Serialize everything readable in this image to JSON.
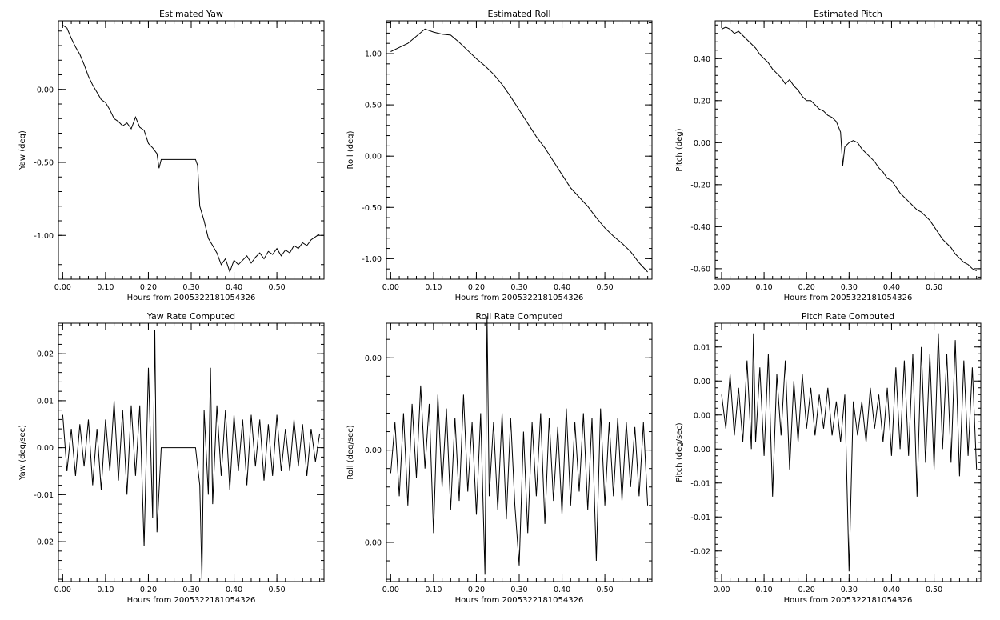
{
  "figure": {
    "background": "#ffffff",
    "line_color": "#000000"
  },
  "chart_data": [
    {
      "type": "line",
      "title": "Estimated Yaw",
      "xlabel": "Hours from 2005322181054326",
      "ylabel": "Yaw (deg)",
      "xlim": [
        -0.01,
        0.61
      ],
      "ylim": [
        -1.3,
        0.47
      ],
      "xticks": [
        0.0,
        0.1,
        0.2,
        0.3,
        0.4,
        0.5
      ],
      "xtick_labels": [
        "0.00",
        "0.10",
        "0.20",
        "0.30",
        "0.40",
        "0.50"
      ],
      "yticks": [
        0.0,
        -0.5,
        -1.0
      ],
      "ytick_labels": [
        "0.00",
        "-0.50",
        "-1.00"
      ],
      "x": [
        0.0,
        0.01,
        0.02,
        0.03,
        0.04,
        0.05,
        0.06,
        0.07,
        0.08,
        0.09,
        0.1,
        0.11,
        0.12,
        0.13,
        0.14,
        0.15,
        0.16,
        0.17,
        0.18,
        0.19,
        0.2,
        0.21,
        0.22,
        0.225,
        0.23,
        0.31,
        0.315,
        0.32,
        0.33,
        0.34,
        0.35,
        0.36,
        0.37,
        0.38,
        0.39,
        0.4,
        0.41,
        0.42,
        0.43,
        0.44,
        0.45,
        0.46,
        0.47,
        0.48,
        0.49,
        0.5,
        0.51,
        0.52,
        0.53,
        0.54,
        0.55,
        0.56,
        0.57,
        0.58,
        0.59,
        0.6
      ],
      "y": [
        0.44,
        0.42,
        0.35,
        0.29,
        0.24,
        0.17,
        0.09,
        0.03,
        -0.02,
        -0.07,
        -0.09,
        -0.14,
        -0.2,
        -0.22,
        -0.25,
        -0.23,
        -0.27,
        -0.19,
        -0.26,
        -0.28,
        -0.37,
        -0.4,
        -0.44,
        -0.54,
        -0.48,
        -0.48,
        -0.52,
        -0.8,
        -0.9,
        -1.02,
        -1.07,
        -1.12,
        -1.2,
        -1.16,
        -1.25,
        -1.17,
        -1.2,
        -1.17,
        -1.14,
        -1.19,
        -1.15,
        -1.12,
        -1.16,
        -1.11,
        -1.13,
        -1.09,
        -1.14,
        -1.1,
        -1.12,
        -1.07,
        -1.09,
        -1.05,
        -1.07,
        -1.03,
        -1.01,
        -0.99
      ]
    },
    {
      "type": "line",
      "title": "Estimated Roll",
      "xlabel": "Hours from 2005322181054326",
      "ylabel": "Roll (deg)",
      "xlim": [
        -0.01,
        0.61
      ],
      "ylim": [
        -1.2,
        1.32
      ],
      "xticks": [
        0.0,
        0.1,
        0.2,
        0.3,
        0.4,
        0.5
      ],
      "xtick_labels": [
        "0.00",
        "0.10",
        "0.20",
        "0.30",
        "0.40",
        "0.50"
      ],
      "yticks": [
        1.0,
        0.5,
        0.0,
        -0.5,
        -1.0
      ],
      "ytick_labels": [
        "1.00",
        "0.50",
        "0.00",
        "-0.50",
        "-1.00"
      ],
      "x": [
        0.0,
        0.02,
        0.04,
        0.06,
        0.08,
        0.1,
        0.12,
        0.14,
        0.16,
        0.18,
        0.2,
        0.22,
        0.24,
        0.26,
        0.28,
        0.3,
        0.32,
        0.34,
        0.36,
        0.38,
        0.4,
        0.42,
        0.44,
        0.46,
        0.48,
        0.5,
        0.52,
        0.54,
        0.56,
        0.58,
        0.6
      ],
      "y": [
        1.02,
        1.06,
        1.1,
        1.17,
        1.24,
        1.21,
        1.19,
        1.18,
        1.11,
        1.03,
        0.95,
        0.88,
        0.8,
        0.7,
        0.58,
        0.45,
        0.32,
        0.19,
        0.08,
        -0.05,
        -0.18,
        -0.31,
        -0.4,
        -0.49,
        -0.6,
        -0.7,
        -0.78,
        -0.85,
        -0.93,
        -1.04,
        -1.13
      ]
    },
    {
      "type": "line",
      "title": "Estimated Pitch",
      "xlabel": "Hours from 2005322181054326",
      "ylabel": "Pitch (deg)",
      "xlim": [
        -0.015,
        0.61
      ],
      "ylim": [
        -0.65,
        0.58
      ],
      "xticks": [
        0.0,
        0.1,
        0.2,
        0.3,
        0.4,
        0.5
      ],
      "xtick_labels": [
        "0.00",
        "0.10",
        "0.20",
        "0.30",
        "0.40",
        "0.50"
      ],
      "yticks": [
        0.4,
        0.2,
        0.0,
        -0.2,
        -0.4,
        -0.6
      ],
      "ytick_labels": [
        "0.40",
        "0.20",
        "0.00",
        "-0.20",
        "-0.40",
        "-0.60"
      ],
      "x": [
        0.0,
        0.01,
        0.02,
        0.03,
        0.04,
        0.05,
        0.06,
        0.07,
        0.08,
        0.09,
        0.1,
        0.11,
        0.12,
        0.13,
        0.14,
        0.15,
        0.16,
        0.17,
        0.18,
        0.19,
        0.2,
        0.21,
        0.22,
        0.23,
        0.24,
        0.25,
        0.26,
        0.27,
        0.28,
        0.285,
        0.29,
        0.3,
        0.31,
        0.32,
        0.33,
        0.34,
        0.35,
        0.36,
        0.37,
        0.38,
        0.39,
        0.4,
        0.41,
        0.42,
        0.43,
        0.44,
        0.45,
        0.46,
        0.47,
        0.48,
        0.49,
        0.5,
        0.51,
        0.52,
        0.53,
        0.54,
        0.55,
        0.56,
        0.57,
        0.58,
        0.59,
        0.6
      ],
      "y": [
        0.54,
        0.55,
        0.54,
        0.52,
        0.53,
        0.51,
        0.49,
        0.47,
        0.45,
        0.42,
        0.4,
        0.38,
        0.35,
        0.33,
        0.31,
        0.28,
        0.3,
        0.27,
        0.25,
        0.22,
        0.2,
        0.2,
        0.18,
        0.16,
        0.15,
        0.13,
        0.12,
        0.1,
        0.05,
        -0.11,
        -0.02,
        0.0,
        0.01,
        0.0,
        -0.03,
        -0.05,
        -0.07,
        -0.09,
        -0.12,
        -0.14,
        -0.17,
        -0.18,
        -0.21,
        -0.24,
        -0.26,
        -0.28,
        -0.3,
        -0.32,
        -0.33,
        -0.35,
        -0.37,
        -0.4,
        -0.43,
        -0.46,
        -0.48,
        -0.5,
        -0.53,
        -0.55,
        -0.57,
        -0.58,
        -0.6,
        -0.61
      ]
    },
    {
      "type": "line",
      "title": "Yaw Rate Computed",
      "xlabel": "Hours from 2005322181054326",
      "ylabel": "Yaw (deg/sec)",
      "xlim": [
        -0.01,
        0.61
      ],
      "ylim": [
        -0.0285,
        0.0265
      ],
      "xticks": [
        0.0,
        0.1,
        0.2,
        0.3,
        0.4,
        0.5
      ],
      "xtick_labels": [
        "0.00",
        "0.10",
        "0.20",
        "0.30",
        "0.40",
        "0.50"
      ],
      "yticks": [
        0.02,
        0.01,
        0.0,
        -0.01,
        -0.02
      ],
      "ytick_labels": [
        "0.02",
        "0.01",
        "0.00",
        "-0.01",
        "-0.02"
      ],
      "x": [
        0.0,
        0.01,
        0.02,
        0.03,
        0.04,
        0.05,
        0.06,
        0.07,
        0.08,
        0.09,
        0.1,
        0.11,
        0.12,
        0.13,
        0.14,
        0.15,
        0.16,
        0.17,
        0.18,
        0.19,
        0.2,
        0.21,
        0.215,
        0.22,
        0.23,
        0.31,
        0.32,
        0.325,
        0.33,
        0.34,
        0.345,
        0.35,
        0.36,
        0.37,
        0.38,
        0.39,
        0.4,
        0.41,
        0.42,
        0.43,
        0.44,
        0.45,
        0.46,
        0.47,
        0.48,
        0.49,
        0.5,
        0.51,
        0.52,
        0.53,
        0.54,
        0.55,
        0.56,
        0.57,
        0.58,
        0.59,
        0.6
      ],
      "y": [
        0.007,
        -0.005,
        0.004,
        -0.006,
        0.005,
        -0.004,
        0.006,
        -0.008,
        0.004,
        -0.009,
        0.006,
        -0.005,
        0.01,
        -0.007,
        0.008,
        -0.01,
        0.009,
        -0.006,
        0.009,
        -0.021,
        0.017,
        -0.015,
        0.025,
        -0.018,
        0.0,
        0.0,
        -0.008,
        -0.028,
        0.008,
        -0.01,
        0.017,
        -0.012,
        0.009,
        -0.006,
        0.008,
        -0.009,
        0.007,
        -0.005,
        0.006,
        -0.008,
        0.007,
        -0.004,
        0.006,
        -0.007,
        0.005,
        -0.006,
        0.007,
        -0.005,
        0.004,
        -0.005,
        0.006,
        -0.004,
        0.005,
        -0.006,
        0.004,
        -0.003,
        0.003
      ]
    },
    {
      "type": "line",
      "title": "Roll Rate Computed",
      "xlabel": "Hours from 2005322181054326",
      "ylabel": "Roll (deg/sec)",
      "xlim": [
        -0.01,
        0.61
      ],
      "ylim": [
        -0.0285,
        0.0275
      ],
      "xticks": [
        0.0,
        0.1,
        0.2,
        0.3,
        0.4,
        0.5
      ],
      "xtick_labels": [
        "0.00",
        "0.10",
        "0.20",
        "0.30",
        "0.40",
        "0.50"
      ],
      "yticks": [
        0.02,
        0.0,
        -0.02
      ],
      "ytick_labels": [
        "0.00",
        "0.00",
        "0.00"
      ],
      "x": [
        0.0,
        0.01,
        0.02,
        0.03,
        0.04,
        0.05,
        0.06,
        0.07,
        0.08,
        0.09,
        0.1,
        0.11,
        0.12,
        0.13,
        0.14,
        0.15,
        0.16,
        0.17,
        0.18,
        0.19,
        0.2,
        0.21,
        0.22,
        0.225,
        0.23,
        0.24,
        0.25,
        0.26,
        0.27,
        0.28,
        0.29,
        0.3,
        0.31,
        0.32,
        0.33,
        0.34,
        0.35,
        0.36,
        0.37,
        0.38,
        0.39,
        0.4,
        0.41,
        0.42,
        0.43,
        0.44,
        0.45,
        0.46,
        0.47,
        0.48,
        0.49,
        0.5,
        0.51,
        0.52,
        0.53,
        0.54,
        0.55,
        0.56,
        0.57,
        0.58,
        0.59,
        0.6
      ],
      "y": [
        -0.005,
        0.006,
        -0.01,
        0.008,
        -0.012,
        0.01,
        -0.006,
        0.014,
        -0.004,
        0.01,
        -0.018,
        0.012,
        -0.008,
        0.009,
        -0.013,
        0.007,
        -0.011,
        0.012,
        -0.009,
        0.006,
        -0.014,
        0.008,
        -0.027,
        0.029,
        -0.01,
        0.006,
        -0.013,
        0.008,
        -0.015,
        0.007,
        -0.012,
        -0.025,
        0.004,
        -0.018,
        0.006,
        -0.01,
        0.008,
        -0.016,
        0.007,
        -0.011,
        0.005,
        -0.014,
        0.009,
        -0.012,
        0.006,
        -0.009,
        0.008,
        -0.013,
        0.007,
        -0.024,
        0.009,
        -0.012,
        0.006,
        -0.01,
        0.007,
        -0.011,
        0.006,
        -0.008,
        0.005,
        -0.01,
        0.006,
        -0.012
      ]
    },
    {
      "type": "line",
      "title": "Pitch Rate Computed",
      "xlabel": "Hours from 2005322181054326",
      "ylabel": "Pitch (deg/sec)",
      "xlim": [
        -0.015,
        0.61
      ],
      "ylim": [
        -0.0245,
        0.0135
      ],
      "xticks": [
        0.0,
        0.1,
        0.2,
        0.3,
        0.4,
        0.5
      ],
      "xtick_labels": [
        "0.00",
        "0.10",
        "0.20",
        "0.30",
        "0.40",
        "0.50"
      ],
      "yticks": [
        0.01,
        0.005,
        0.0,
        -0.005,
        -0.01,
        -0.015,
        -0.02
      ],
      "ytick_labels": [
        "0.01",
        "0.00",
        "0.00",
        "0.00",
        "-0.01",
        "-0.01",
        "-0.02"
      ],
      "x": [
        0.0,
        0.01,
        0.02,
        0.03,
        0.04,
        0.05,
        0.06,
        0.07,
        0.075,
        0.08,
        0.09,
        0.1,
        0.11,
        0.12,
        0.13,
        0.14,
        0.15,
        0.16,
        0.17,
        0.18,
        0.19,
        0.2,
        0.21,
        0.22,
        0.23,
        0.24,
        0.25,
        0.26,
        0.27,
        0.28,
        0.29,
        0.3,
        0.31,
        0.32,
        0.33,
        0.34,
        0.35,
        0.36,
        0.37,
        0.38,
        0.39,
        0.4,
        0.41,
        0.42,
        0.43,
        0.44,
        0.45,
        0.46,
        0.47,
        0.48,
        0.49,
        0.5,
        0.51,
        0.52,
        0.53,
        0.54,
        0.55,
        0.56,
        0.57,
        0.58,
        0.59,
        0.6
      ],
      "y": [
        0.003,
        -0.002,
        0.006,
        -0.003,
        0.004,
        -0.004,
        0.008,
        -0.005,
        0.012,
        -0.004,
        0.007,
        -0.006,
        0.009,
        -0.012,
        0.006,
        -0.003,
        0.008,
        -0.008,
        0.005,
        -0.004,
        0.006,
        -0.002,
        0.004,
        -0.003,
        0.003,
        -0.002,
        0.004,
        -0.003,
        0.002,
        -0.004,
        0.003,
        -0.023,
        0.002,
        -0.003,
        0.002,
        -0.004,
        0.004,
        -0.002,
        0.003,
        -0.004,
        0.004,
        -0.006,
        0.007,
        -0.005,
        0.008,
        -0.006,
        0.009,
        -0.012,
        0.01,
        -0.007,
        0.009,
        -0.008,
        0.012,
        -0.005,
        0.009,
        -0.007,
        0.011,
        -0.009,
        0.008,
        -0.006,
        0.007,
        -0.008
      ]
    }
  ]
}
